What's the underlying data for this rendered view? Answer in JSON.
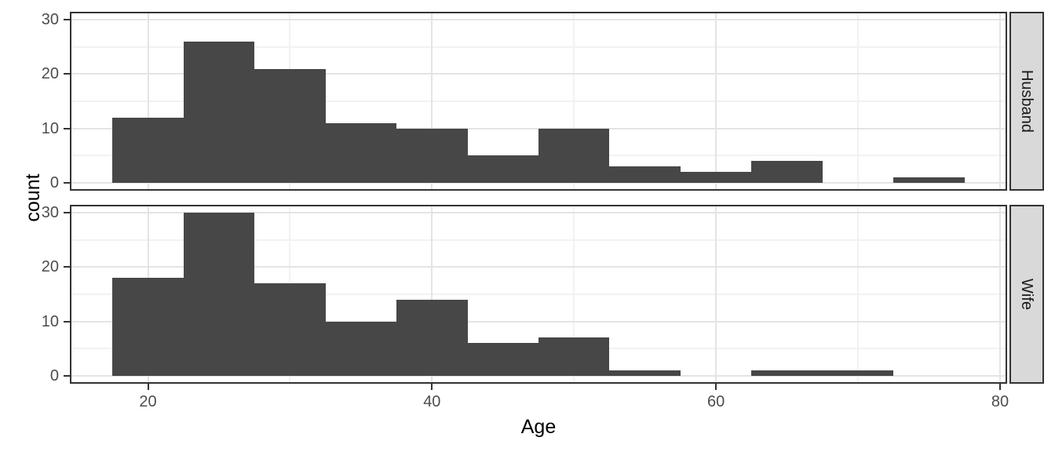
{
  "chart_data": {
    "type": "histogram",
    "title": "",
    "xlabel": "Age",
    "ylabel": "count",
    "facet_strip_position": "right",
    "bin_start": 17.5,
    "bin_width": 5,
    "bin_edges": [
      17.5,
      22.5,
      27.5,
      32.5,
      37.5,
      42.5,
      47.5,
      52.5,
      57.5,
      62.5,
      67.5,
      72.5,
      77.5
    ],
    "x": {
      "range": [
        14.5,
        80.5
      ],
      "ticks": [
        20,
        40,
        60,
        80
      ],
      "minor_ticks": [
        30,
        50,
        70
      ]
    },
    "y": {
      "range": [
        -1.5,
        31.5
      ],
      "ticks": [
        0,
        10,
        20,
        30
      ],
      "minor_ticks": [
        5,
        15,
        25
      ]
    },
    "series": [
      {
        "name": "Husband",
        "counts": [
          12,
          26,
          21,
          11,
          10,
          5,
          10,
          3,
          2,
          4,
          0,
          1
        ]
      },
      {
        "name": "Wife",
        "counts": [
          18,
          30,
          17,
          10,
          14,
          6,
          7,
          1,
          0,
          1,
          1,
          0
        ]
      }
    ],
    "grid": true,
    "legend": false,
    "colors": {
      "bar_fill": "#474747",
      "panel_background": "#ffffff",
      "panel_border": "#333333",
      "grid_major": "#e4e4e4",
      "grid_minor": "#f2f2f2",
      "strip_fill": "#d9d9d9",
      "strip_border": "#333333",
      "strip_text": "#1a1a1a",
      "tick_mark": "#333333",
      "tick_label": "#4d4d4d",
      "axis_title": "#000000"
    }
  }
}
